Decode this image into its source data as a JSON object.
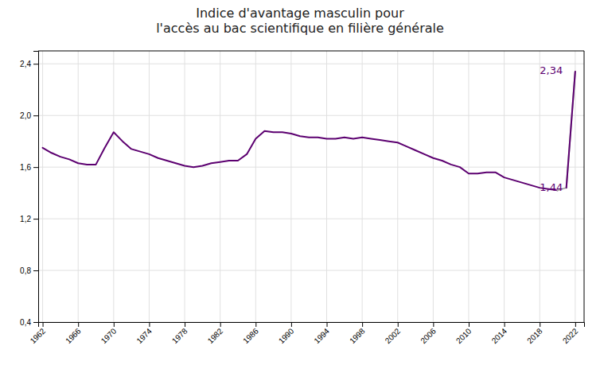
{
  "chart_data": {
    "type": "line",
    "title": "Indice d'avantage masculin pour\nl'accès au bac scientifique en filière générale",
    "xlim": [
      1961.5,
      2023.0
    ],
    "xticks": [
      1962,
      1966,
      1970,
      1974,
      1978,
      1982,
      1986,
      1990,
      1994,
      1998,
      2002,
      2006,
      2010,
      2014,
      2018,
      2022
    ],
    "ylim": [
      0.4,
      2.5
    ],
    "yticks": [
      {
        "value": 0.4,
        "label": "0,4"
      },
      {
        "value": 0.8,
        "label": "0,8"
      },
      {
        "value": 1.2,
        "label": "1,2"
      },
      {
        "value": 1.6,
        "label": "1,6"
      },
      {
        "value": 2.0,
        "label": "2,0"
      },
      {
        "value": 2.4,
        "label": "2,4"
      }
    ],
    "grid": true,
    "series": [
      {
        "color": "#5c0070",
        "x": [
          1962,
          1963,
          1964,
          1965,
          1966,
          1967,
          1968,
          1969,
          1970,
          1971,
          1972,
          1973,
          1974,
          1975,
          1976,
          1977,
          1978,
          1979,
          1980,
          1981,
          1982,
          1983,
          1984,
          1985,
          1986,
          1987,
          1988,
          1989,
          1990,
          1991,
          1992,
          1993,
          1994,
          1995,
          1996,
          1997,
          1998,
          1999,
          2000,
          2001,
          2002,
          2003,
          2004,
          2005,
          2006,
          2007,
          2008,
          2009,
          2010,
          2011,
          2012,
          2013,
          2014,
          2015,
          2016,
          2017,
          2018,
          2019,
          2020
        ],
        "values": [
          1.75,
          1.71,
          1.68,
          1.66,
          1.63,
          1.62,
          1.62,
          1.75,
          1.87,
          1.8,
          1.74,
          1.72,
          1.7,
          1.67,
          1.65,
          1.63,
          1.61,
          1.6,
          1.61,
          1.63,
          1.64,
          1.65,
          1.65,
          1.7,
          1.82,
          1.88,
          1.87,
          1.87,
          1.86,
          1.84,
          1.83,
          1.83,
          1.82,
          1.82,
          1.83,
          1.82,
          1.83,
          1.82,
          1.81,
          1.8,
          1.79,
          1.76,
          1.73,
          1.7,
          1.67,
          1.65,
          1.62,
          1.6,
          1.55,
          1.55,
          1.56,
          1.56,
          1.52,
          1.5,
          1.48,
          1.46,
          1.44,
          1.43,
          1.42
        ]
      },
      {
        "color": "#aaaaaa",
        "x": [
          2020,
          2021,
          2022
        ],
        "values": [
          1.42,
          1.44,
          2.34
        ]
      },
      {
        "color": "#5c0070",
        "x": [
          2021,
          2022
        ],
        "values": [
          1.44,
          2.34
        ]
      }
    ],
    "annotations": [
      {
        "text": "2,34",
        "x": 2020.6,
        "y": 2.34
      },
      {
        "text": "1,44",
        "x": 2020.6,
        "y": 1.44
      }
    ]
  }
}
